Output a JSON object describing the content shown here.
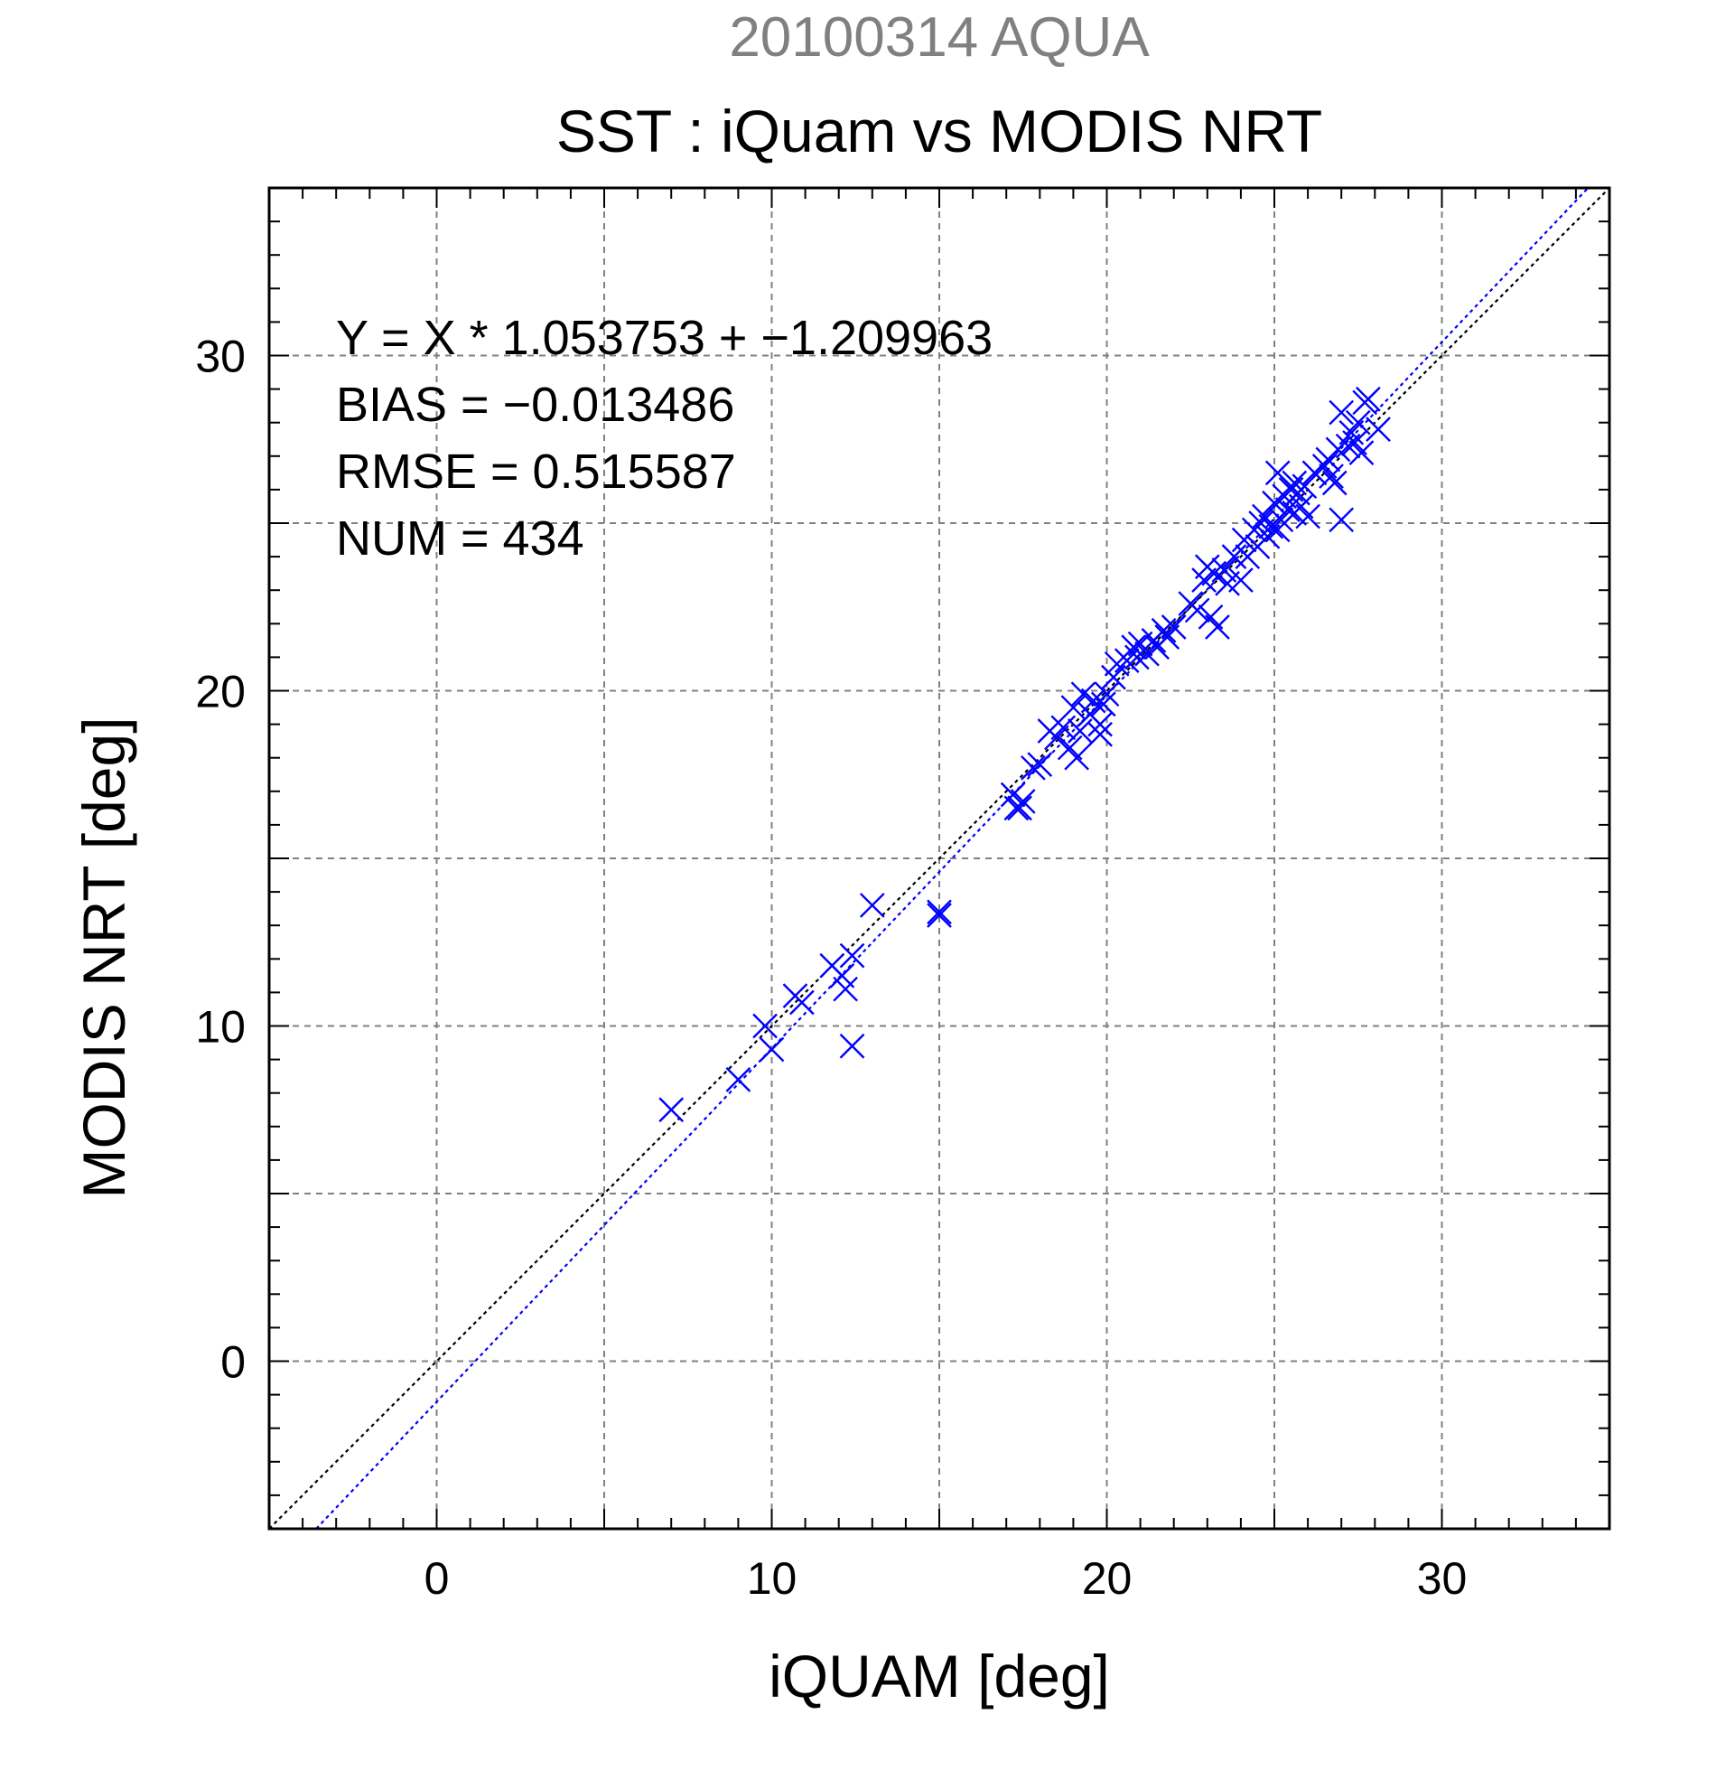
{
  "chart_data": {
    "type": "scatter",
    "supertitle": "20100314 AQUA",
    "title": "SST : iQuam vs MODIS NRT",
    "xlabel": "iQUAM [deg]",
    "ylabel": "MODIS NRT [deg]",
    "xlim": [
      -5,
      35
    ],
    "ylim": [
      -5,
      35
    ],
    "xticks": [
      0,
      10,
      20,
      30
    ],
    "yticks": [
      0,
      10,
      20,
      30
    ],
    "xtick_labels": [
      "0",
      "10",
      "20",
      "30"
    ],
    "ytick_labels": [
      "0",
      "10",
      "20",
      "30"
    ],
    "grid": true,
    "annotations": {
      "regression": "Y = X * 1.053753 + −1.209963",
      "bias": "BIAS = −0.013486",
      "rmse": "RMSE = 0.515587",
      "num": "NUM = 434"
    },
    "lines": {
      "one_to_one": {
        "slope": 1,
        "intercept": 0,
        "color": "#000000"
      },
      "regression": {
        "slope": 1.053753,
        "intercept": -1.209963,
        "color": "#0000ff"
      }
    },
    "marker_color": "#0000ff",
    "points": [
      [
        7.0,
        7.5
      ],
      [
        9.0,
        8.4
      ],
      [
        9.8,
        10.0
      ],
      [
        10.0,
        9.3
      ],
      [
        10.7,
        10.9
      ],
      [
        10.9,
        10.7
      ],
      [
        11.8,
        11.8
      ],
      [
        12.1,
        11.5
      ],
      [
        12.2,
        11.1
      ],
      [
        12.4,
        12.1
      ],
      [
        12.4,
        9.4
      ],
      [
        13.0,
        13.6
      ],
      [
        15.0,
        13.3
      ],
      [
        15.0,
        13.4
      ],
      [
        17.2,
        16.9
      ],
      [
        17.3,
        16.5
      ],
      [
        17.5,
        16.7
      ],
      [
        17.4,
        16.5
      ],
      [
        17.8,
        17.7
      ],
      [
        18.0,
        17.8
      ],
      [
        18.3,
        18.8
      ],
      [
        18.5,
        18.6
      ],
      [
        18.7,
        18.9
      ],
      [
        18.9,
        18.3
      ],
      [
        19.0,
        19.5
      ],
      [
        19.1,
        18.0
      ],
      [
        19.2,
        18.8
      ],
      [
        19.3,
        19.9
      ],
      [
        19.5,
        19.3
      ],
      [
        19.6,
        19.7
      ],
      [
        19.8,
        19.0
      ],
      [
        19.9,
        19.6
      ],
      [
        19.8,
        18.7
      ],
      [
        20.0,
        19.9
      ],
      [
        20.2,
        20.4
      ],
      [
        20.3,
        20.8
      ],
      [
        20.6,
        20.9
      ],
      [
        20.8,
        21.3
      ],
      [
        20.9,
        21.0
      ],
      [
        21.0,
        21.4
      ],
      [
        21.2,
        21.1
      ],
      [
        21.4,
        21.5
      ],
      [
        21.5,
        21.3
      ],
      [
        21.7,
        21.8
      ],
      [
        21.8,
        21.6
      ],
      [
        22.0,
        21.9
      ],
      [
        22.5,
        22.6
      ],
      [
        22.7,
        22.4
      ],
      [
        22.9,
        23.3
      ],
      [
        23.0,
        23.7
      ],
      [
        23.1,
        22.2
      ],
      [
        23.2,
        23.5
      ],
      [
        23.3,
        21.9
      ],
      [
        23.5,
        23.6
      ],
      [
        23.6,
        23.2
      ],
      [
        23.8,
        24.0
      ],
      [
        24.0,
        23.3
      ],
      [
        24.1,
        24.5
      ],
      [
        24.2,
        24.0
      ],
      [
        24.4,
        24.8
      ],
      [
        24.5,
        24.3
      ],
      [
        24.6,
        25.0
      ],
      [
        24.7,
        25.2
      ],
      [
        24.8,
        24.6
      ],
      [
        24.9,
        24.9
      ],
      [
        25.0,
        25.6
      ],
      [
        25.1,
        26.5
      ],
      [
        25.1,
        24.8
      ],
      [
        25.2,
        25.1
      ],
      [
        25.3,
        25.8
      ],
      [
        25.4,
        25.4
      ],
      [
        25.5,
        26.0
      ],
      [
        25.6,
        26.2
      ],
      [
        25.6,
        25.3
      ],
      [
        25.7,
        25.9
      ],
      [
        25.8,
        25.5
      ],
      [
        25.9,
        26.1
      ],
      [
        26.0,
        25.2
      ],
      [
        26.2,
        26.5
      ],
      [
        26.5,
        26.7
      ],
      [
        26.6,
        26.9
      ],
      [
        26.7,
        26.4
      ],
      [
        26.8,
        26.2
      ],
      [
        26.9,
        27.2
      ],
      [
        27.0,
        25.1
      ],
      [
        27.0,
        28.3
      ],
      [
        27.2,
        27.3
      ],
      [
        27.3,
        27.7
      ],
      [
        27.4,
        27.4
      ],
      [
        27.5,
        28.0
      ],
      [
        27.6,
        27.1
      ],
      [
        27.7,
        28.6
      ],
      [
        27.8,
        28.7
      ],
      [
        28.1,
        27.8
      ]
    ]
  }
}
